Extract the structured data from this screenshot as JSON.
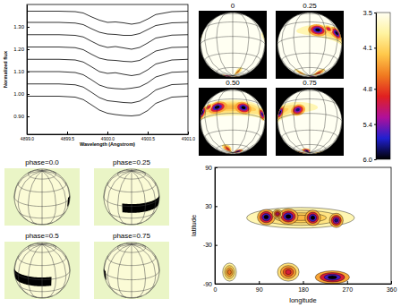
{
  "chart_data": [
    {
      "type": "line",
      "x": [
        4899.0,
        4899.4,
        4899.6,
        4899.7,
        4899.8,
        4899.9,
        4900.0,
        4900.1,
        4900.2,
        4900.3,
        4900.4,
        4900.5,
        4900.6,
        4900.8,
        4901.0
      ],
      "series": [
        {
          "color": "#000000",
          "values": [
            1.37,
            1.37,
            1.368,
            1.362,
            1.345,
            1.33,
            1.32,
            1.322,
            1.318,
            1.312,
            1.318,
            1.335,
            1.355,
            1.368,
            1.37
          ]
        },
        {
          "color": "#000000",
          "values": [
            1.32,
            1.32,
            1.317,
            1.31,
            1.292,
            1.276,
            1.268,
            1.266,
            1.262,
            1.262,
            1.27,
            1.288,
            1.306,
            1.318,
            1.32
          ]
        },
        {
          "color": "#000000",
          "values": [
            1.265,
            1.265,
            1.262,
            1.255,
            1.236,
            1.218,
            1.208,
            1.212,
            1.206,
            1.2,
            1.208,
            1.228,
            1.25,
            1.263,
            1.265
          ]
        },
        {
          "color": "#000000",
          "values": [
            1.21,
            1.21,
            1.207,
            1.198,
            1.178,
            1.16,
            1.152,
            1.15,
            1.146,
            1.144,
            1.15,
            1.17,
            1.192,
            1.208,
            1.21
          ]
        },
        {
          "color": "#000000",
          "values": [
            1.155,
            1.155,
            1.152,
            1.143,
            1.122,
            1.1,
            1.092,
            1.095,
            1.088,
            1.082,
            1.088,
            1.108,
            1.134,
            1.152,
            1.155
          ]
        },
        {
          "color": "#000000",
          "values": [
            1.1,
            1.1,
            1.096,
            1.086,
            1.064,
            1.04,
            1.028,
            1.024,
            1.022,
            1.026,
            1.032,
            1.05,
            1.076,
            1.097,
            1.1
          ]
        },
        {
          "color": "#000000",
          "values": [
            1.045,
            1.045,
            1.041,
            1.031,
            1.008,
            0.984,
            0.97,
            0.966,
            0.962,
            0.96,
            0.968,
            0.99,
            1.018,
            1.042,
            1.045
          ]
        },
        {
          "color": "#000000",
          "values": [
            0.99,
            0.99,
            0.986,
            0.975,
            0.952,
            0.928,
            0.914,
            0.908,
            0.904,
            0.902,
            0.906,
            0.926,
            0.958,
            0.986,
            0.99
          ]
        }
      ],
      "xlim": [
        4899.0,
        4901.0
      ],
      "ylim": [
        0.82,
        1.4
      ],
      "xticks": [
        {
          "value": 4899.0,
          "label": "4899.0"
        },
        4899.5,
        {
          "value": 4900.0,
          "label": "4900.0"
        },
        4900.5,
        {
          "value": 4901.0,
          "label": "4901.0"
        }
      ],
      "yticks": [
        {
          "value": 0.9,
          "label": "0.90"
        },
        {
          "value": 1.0,
          "label": "1.00"
        },
        {
          "value": 1.1,
          "label": "1.10"
        },
        {
          "value": 1.2,
          "label": "1.20"
        },
        {
          "value": 1.3,
          "label": "1.30"
        }
      ],
      "xlabel": "Wavelength (Angstrom)",
      "ylabel": "Normalized flux"
    },
    {
      "type": "globe",
      "labels": [
        "0",
        "0.25",
        "0.50",
        "0.75"
      ],
      "phases": [
        0,
        0.25,
        0.5,
        0.75
      ],
      "spots": [
        {
          "lon": 175,
          "lat": 12,
          "dlon": 110,
          "dlat": 16,
          "value": 4.3
        },
        {
          "lon": 105,
          "lat": 13,
          "dlon": 18,
          "dlat": 12,
          "value": 6.0
        },
        {
          "lon": 150,
          "lat": 14,
          "dlon": 20,
          "dlat": 12,
          "value": 6.0
        },
        {
          "lon": 200,
          "lat": 12,
          "dlon": 16,
          "dlat": 12,
          "value": 6.0
        },
        {
          "lon": 248,
          "lat": 8,
          "dlon": 14,
          "dlat": 11,
          "value": 5.8
        },
        {
          "lon": 128,
          "lat": 18,
          "dlon": 10,
          "dlat": 7,
          "value": 5.2
        },
        {
          "lon": 30,
          "lat": -72,
          "dlon": 14,
          "dlat": 14,
          "value": 4.6
        },
        {
          "lon": 150,
          "lat": -72,
          "dlon": 22,
          "dlat": 14,
          "value": 5.0
        },
        {
          "lon": 240,
          "lat": -80,
          "dlon": 35,
          "dlat": 10,
          "value": 6.0
        }
      ],
      "colorbar": {
        "lim": [
          3.5,
          6.0
        ],
        "ticks": [
          3.5,
          4.1,
          4.8,
          5.4,
          {
            "value": 6.0,
            "label": "6.0"
          }
        ]
      }
    },
    {
      "type": "globe",
      "labels": [
        "phase=0.0",
        "phase=0.25",
        "phase=0.5",
        "phase=0.75"
      ],
      "phases": [
        0,
        0.25,
        0.5,
        0.75
      ],
      "band": {
        "lon": [
          70,
          200
        ],
        "lat": [
          -15,
          5
        ]
      },
      "color": "#000000"
    },
    {
      "type": "map",
      "xlim": [
        0,
        360
      ],
      "ylim": [
        -90,
        90
      ],
      "xticks": [
        0,
        90,
        180,
        270,
        360
      ],
      "yticks": [
        -90,
        -30,
        30,
        90
      ],
      "xlabel": "longitude",
      "ylabel": "latitude"
    }
  ]
}
